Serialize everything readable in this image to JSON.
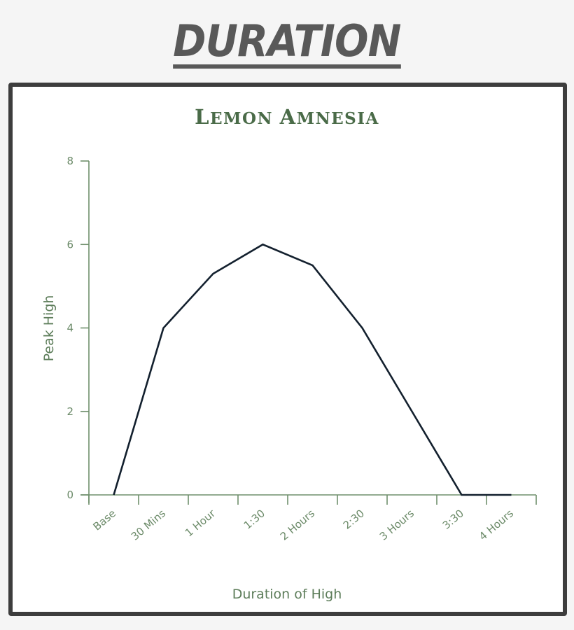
{
  "page": {
    "title": "DURATION"
  },
  "colors": {
    "title_gray": "#595959",
    "frame": "#3d3d3d",
    "axis_green": "#6f8f6c",
    "text_green": "#4a6b48",
    "line": "#13202e"
  },
  "chart_data": {
    "type": "line",
    "title": "Lemon Amnesia",
    "xlabel": "Duration of High",
    "ylabel": "Peak High",
    "categories": [
      "Base",
      "30 Mins",
      "1 Hour",
      "1:30",
      "2 Hours",
      "2:30",
      "3 Hours",
      "3:30",
      "4 Hours"
    ],
    "series": [
      {
        "name": "Peak High",
        "values": [
          0,
          4,
          5.3,
          6,
          5.5,
          4,
          2,
          0,
          0
        ]
      }
    ],
    "yticks": [
      0,
      2,
      4,
      6,
      8
    ],
    "ylim": [
      0,
      8
    ],
    "grid": false,
    "legend": "none"
  }
}
